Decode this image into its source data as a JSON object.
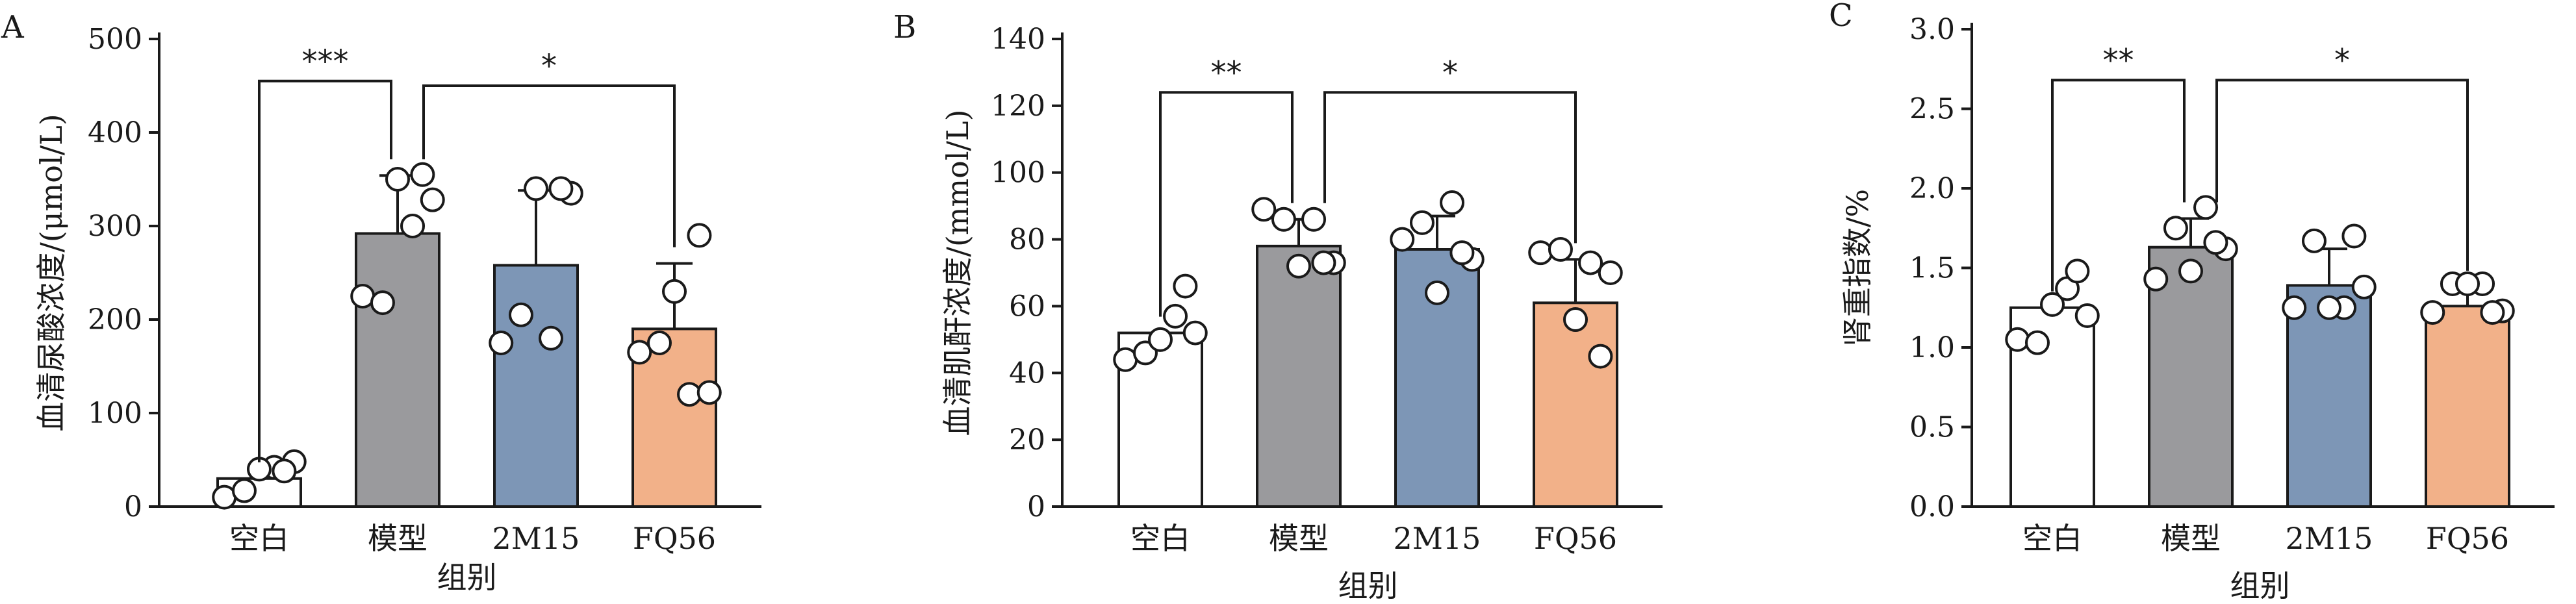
{
  "colors": {
    "空白": "#ffffff",
    "模型": "#9a9a9d",
    "2M15": "#7d96b6",
    "FQ56": "#f2b189"
  },
  "chart_data": [
    {
      "panel": "A",
      "type": "bar",
      "categories": [
        "空白",
        "模型",
        "2M15",
        "FQ56"
      ],
      "xlabel": "组别",
      "ylabel": "血清尿酸浓度/(μmol/L)",
      "ylim": [
        0,
        500
      ],
      "yticks": [
        0,
        100,
        200,
        300,
        400,
        500
      ],
      "tick_labels": [
        "0",
        "100",
        "200",
        "300",
        "400",
        "500"
      ],
      "means": [
        30,
        292,
        258,
        190
      ],
      "errors": [
        0,
        62,
        80,
        70
      ],
      "points": [
        [
          10,
          17,
          42,
          48,
          40,
          38
        ],
        [
          225,
          218,
          300,
          328,
          350,
          355
        ],
        [
          175,
          205,
          180,
          335,
          340,
          340
        ],
        [
          165,
          175,
          120,
          122,
          230,
          290
        ]
      ],
      "comparisons": [
        {
          "from": 0,
          "to": 1,
          "label": "***",
          "y": 455
        },
        {
          "from": 1,
          "to": 3,
          "label": "*",
          "y": 450
        }
      ]
    },
    {
      "panel": "B",
      "type": "bar",
      "categories": [
        "空白",
        "模型",
        "2M15",
        "FQ56"
      ],
      "xlabel": "组别",
      "ylabel": "血清肌酐浓度/(mmol/L)",
      "ylim": [
        0,
        140
      ],
      "yticks": [
        0,
        20,
        40,
        60,
        80,
        100,
        120,
        140
      ],
      "tick_labels": [
        "0",
        "20",
        "40",
        "60",
        "80",
        "100",
        "120",
        "140"
      ],
      "means": [
        52,
        78,
        77,
        61
      ],
      "errors": [
        0,
        8,
        10,
        13
      ],
      "points": [
        [
          44,
          46,
          57,
          52,
          50,
          66
        ],
        [
          89,
          86,
          86,
          73,
          72,
          73
        ],
        [
          80,
          85,
          91,
          74,
          64,
          76
        ],
        [
          76,
          77,
          73,
          70,
          56,
          45
        ]
      ],
      "comparisons": [
        {
          "from": 0,
          "to": 1,
          "label": "**",
          "y": 124
        },
        {
          "from": 1,
          "to": 3,
          "label": "*",
          "y": 124
        }
      ]
    },
    {
      "panel": "C",
      "type": "bar",
      "categories": [
        "空白",
        "模型",
        "2M15",
        "FQ56"
      ],
      "xlabel": "组别",
      "ylabel": "肾重指数/%",
      "ylim": [
        0,
        3.0
      ],
      "yticks": [
        0,
        0.5,
        1.0,
        1.5,
        2.0,
        2.5,
        3.0
      ],
      "tick_labels": [
        "0.0",
        "0.5",
        "1.0",
        "1.5",
        "2.0",
        "2.5",
        "3.0"
      ],
      "means": [
        1.25,
        1.63,
        1.39,
        1.26
      ],
      "errors": [
        0,
        0.18,
        0.23,
        0.12
      ],
      "points": [
        [
          1.05,
          1.03,
          1.37,
          1.2,
          1.27,
          1.48
        ],
        [
          1.43,
          1.75,
          1.88,
          1.62,
          1.48,
          1.66
        ],
        [
          1.25,
          1.67,
          1.25,
          1.38,
          1.25,
          1.7
        ],
        [
          1.22,
          1.4,
          1.4,
          1.23,
          1.4,
          1.22
        ]
      ],
      "comparisons": [
        {
          "from": 0,
          "to": 1,
          "label": "**",
          "y": 2.68
        },
        {
          "from": 1,
          "to": 3,
          "label": "*",
          "y": 2.68
        }
      ]
    }
  ]
}
